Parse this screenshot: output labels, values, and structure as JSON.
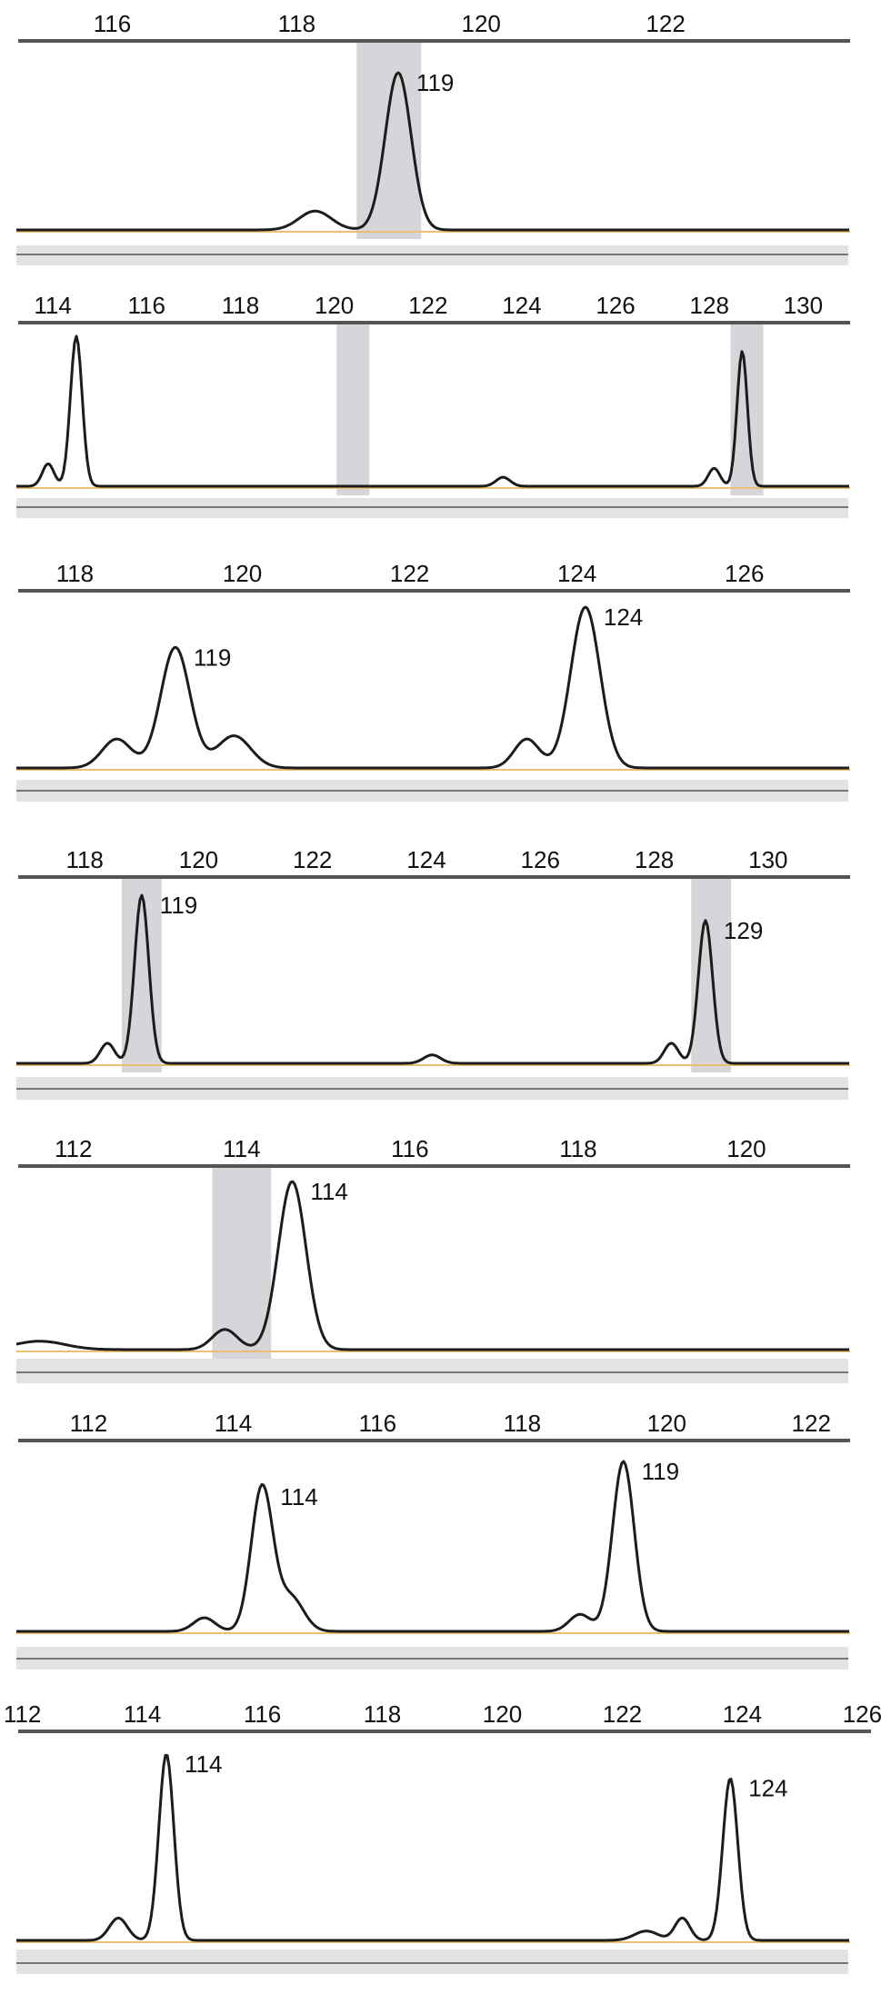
{
  "colors": {
    "trace": "#1c1c1c",
    "axis_rule": "#555555",
    "baseline": "#e8c070",
    "baseline_mark": "#d0642c",
    "allele_bin": "#cfcfd4",
    "footer_band": "#e3e3e3",
    "footer_rule": "#777777"
  },
  "chart_data": [
    {
      "type": "line",
      "x_axis": {
        "range": [
          115,
          124
        ],
        "ticks": [
          "116",
          "118",
          "120",
          "122"
        ]
      },
      "bins": [
        119
      ],
      "peaks": [
        {
          "size": 118.2,
          "height": 0.12,
          "width": 0.35,
          "label": ""
        },
        {
          "size": 119.1,
          "height": 1.0,
          "width": 0.28,
          "label": "119"
        }
      ]
    },
    {
      "type": "line",
      "x_axis": {
        "range": [
          113.3,
          131.0
        ],
        "ticks": [
          "114",
          "116",
          "118",
          "120",
          "122",
          "124",
          "126",
          "128",
          "130"
        ]
      },
      "bins": [
        120.4,
        128.8
      ],
      "peaks": [
        {
          "size": 113.9,
          "height": 0.15,
          "width": 0.25,
          "label": ""
        },
        {
          "size": 114.5,
          "height": 1.0,
          "width": 0.25,
          "label": ""
        },
        {
          "size": 123.6,
          "height": 0.06,
          "width": 0.3,
          "label": ""
        },
        {
          "size": 128.1,
          "height": 0.12,
          "width": 0.25,
          "label": ""
        },
        {
          "size": 128.7,
          "height": 0.9,
          "width": 0.22,
          "label": ""
        }
      ]
    },
    {
      "type": "line",
      "x_axis": {
        "range": [
          117.3,
          127.1
        ],
        "ticks": [
          "118",
          "120",
          "122",
          "124",
          "126"
        ]
      },
      "bins": [],
      "peaks": [
        {
          "size": 118.5,
          "height": 0.18,
          "width": 0.35,
          "label": ""
        },
        {
          "size": 119.2,
          "height": 0.75,
          "width": 0.35,
          "label": "119"
        },
        {
          "size": 119.9,
          "height": 0.2,
          "width": 0.4,
          "label": ""
        },
        {
          "size": 123.4,
          "height": 0.18,
          "width": 0.3,
          "label": ""
        },
        {
          "size": 124.1,
          "height": 1.0,
          "width": 0.35,
          "label": "124"
        }
      ]
    },
    {
      "type": "line",
      "x_axis": {
        "range": [
          116.8,
          131.2
        ],
        "ticks": [
          "118",
          "120",
          "122",
          "124",
          "126",
          "128",
          "130"
        ]
      },
      "bins": [
        119,
        129
      ],
      "peaks": [
        {
          "size": 118.4,
          "height": 0.12,
          "width": 0.25,
          "label": ""
        },
        {
          "size": 119.0,
          "height": 1.0,
          "width": 0.25,
          "label": "119"
        },
        {
          "size": 124.1,
          "height": 0.05,
          "width": 0.3,
          "label": ""
        },
        {
          "size": 128.3,
          "height": 0.12,
          "width": 0.25,
          "label": ""
        },
        {
          "size": 128.9,
          "height": 0.85,
          "width": 0.25,
          "label": "129"
        }
      ]
    },
    {
      "type": "line",
      "x_axis": {
        "range": [
          111.3,
          121.2
        ],
        "ticks": [
          "112",
          "114",
          "116",
          "118",
          "120"
        ]
      },
      "bins": [
        114
      ],
      "peaks": [
        {
          "size": 111.6,
          "height": 0.05,
          "width": 0.6,
          "label": ""
        },
        {
          "size": 113.8,
          "height": 0.12,
          "width": 0.3,
          "label": ""
        },
        {
          "size": 114.6,
          "height": 1.0,
          "width": 0.33,
          "label": "114"
        }
      ]
    },
    {
      "type": "line",
      "x_axis": {
        "range": [
          111.0,
          122.5
        ],
        "ticks": [
          "112",
          "114",
          "116",
          "118",
          "120",
          "122"
        ]
      },
      "bins": [],
      "peaks": [
        {
          "size": 113.6,
          "height": 0.08,
          "width": 0.3,
          "label": ""
        },
        {
          "size": 114.4,
          "height": 0.85,
          "width": 0.3,
          "label": "114"
        },
        {
          "size": 114.8,
          "height": 0.2,
          "width": 0.35,
          "label": ""
        },
        {
          "size": 118.8,
          "height": 0.1,
          "width": 0.3,
          "label": ""
        },
        {
          "size": 119.4,
          "height": 1.0,
          "width": 0.3,
          "label": "119"
        }
      ]
    },
    {
      "type": "line",
      "x_axis": {
        "range": [
          111.9,
          126.1
        ],
        "ticks": [
          "112",
          "114",
          "116",
          "118",
          "120",
          "122",
          "124",
          "126"
        ]
      },
      "bins": [],
      "peaks": [
        {
          "size": 113.6,
          "height": 0.12,
          "width": 0.3,
          "label": ""
        },
        {
          "size": 114.4,
          "height": 1.0,
          "width": 0.25,
          "label": "114"
        },
        {
          "size": 122.4,
          "height": 0.05,
          "width": 0.4,
          "label": ""
        },
        {
          "size": 123.0,
          "height": 0.12,
          "width": 0.25,
          "label": ""
        },
        {
          "size": 123.8,
          "height": 0.87,
          "width": 0.25,
          "label": "124"
        }
      ]
    }
  ]
}
